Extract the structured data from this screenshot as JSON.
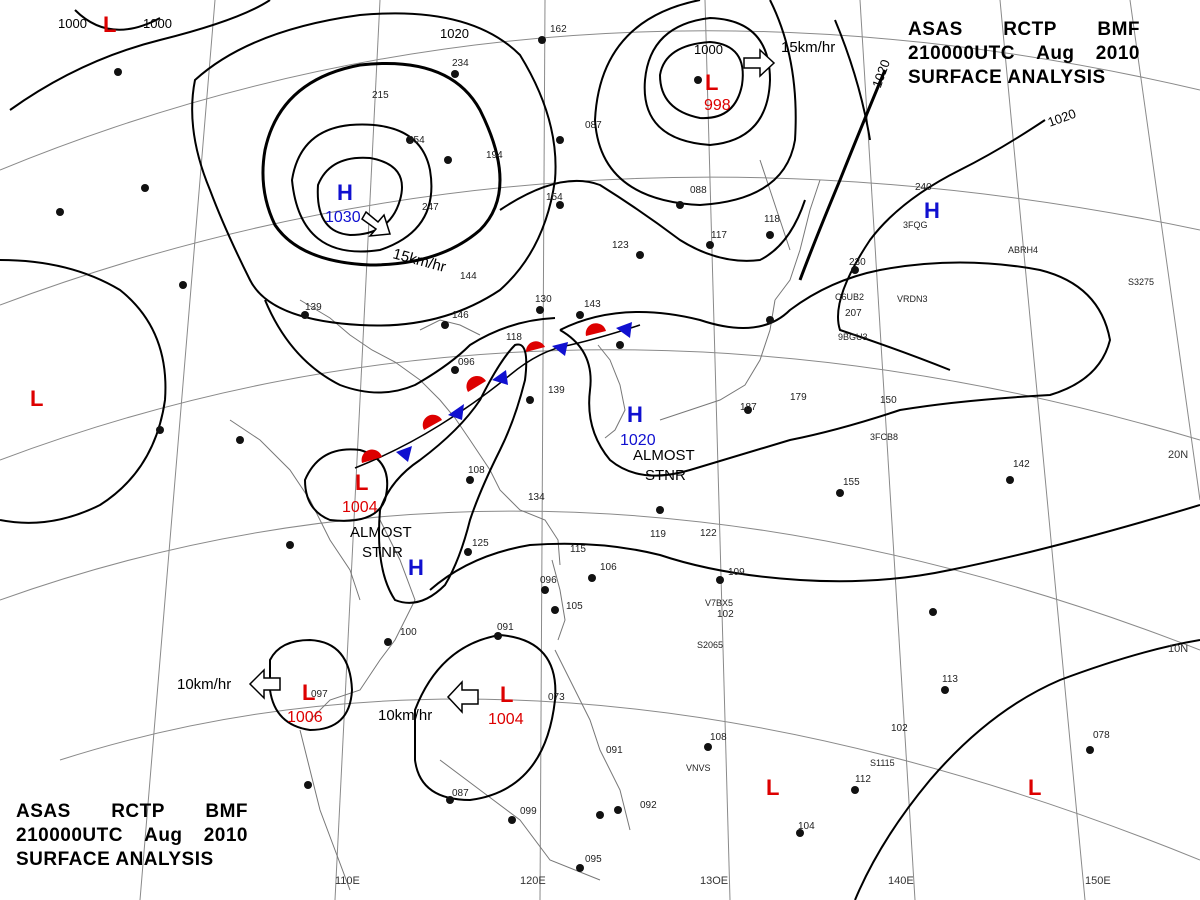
{
  "header": {
    "source": [
      "ASAS",
      "RCTP",
      "BMF"
    ],
    "time": [
      "210000UTC",
      "Aug",
      "2010"
    ],
    "title": "SURFACE ANALYSIS"
  },
  "colors": {
    "high": "#1010d0",
    "low": "#dd0000",
    "line": "#000000",
    "grid": "#777777"
  },
  "graticule": {
    "lon_labels": [
      "110E",
      "120E",
      "13OE",
      "140E",
      "150E"
    ],
    "lat_labels": [
      "20N",
      "10N"
    ]
  },
  "isobar_labels": [
    "1000",
    "1000",
    "1000",
    "1020",
    "1020",
    "1020"
  ],
  "pressure_systems": [
    {
      "type": "H",
      "value": "1030"
    },
    {
      "type": "H",
      "value": "1020"
    },
    {
      "type": "H",
      "value": ""
    },
    {
      "type": "H",
      "value": ""
    },
    {
      "type": "L",
      "value": "998"
    },
    {
      "type": "L",
      "value": "1004"
    },
    {
      "type": "L",
      "value": "1006"
    },
    {
      "type": "L",
      "value": "1004"
    },
    {
      "type": "L",
      "value": ""
    },
    {
      "type": "L",
      "value": ""
    },
    {
      "type": "L",
      "value": ""
    },
    {
      "type": "L",
      "value": ""
    }
  ],
  "motion_labels": [
    "15km/hr",
    "15km/hr",
    "10km/hr",
    "10km/hr"
  ],
  "status_labels": [
    {
      "line1": "ALMOST",
      "line2": "STNR"
    },
    {
      "line1": "ALMOST",
      "line2": "STNR"
    }
  ],
  "station_values": [
    "234",
    "215",
    "254",
    "247",
    "194",
    "154",
    "162",
    "087",
    "088",
    "123",
    "117",
    "118",
    "230",
    "240",
    "207",
    "146",
    "144",
    "139",
    "130",
    "143",
    "118",
    "096",
    "139",
    "108",
    "134",
    "125",
    "115",
    "096",
    "105",
    "106",
    "091",
    "100",
    "097",
    "073",
    "091",
    "092",
    "099",
    "095",
    "087",
    "119",
    "122",
    "109",
    "102",
    "155",
    "142",
    "113",
    "102",
    "112",
    "104",
    "078",
    "108",
    "150",
    "187",
    "179"
  ],
  "ship_callsigns": [
    "3FQG",
    "C6UB2",
    "VRDN3",
    "ABRH4",
    "S3275",
    "9BGU3",
    "3FCB8",
    "V7BX5",
    "S2065",
    "S1115",
    "VNVS"
  ]
}
